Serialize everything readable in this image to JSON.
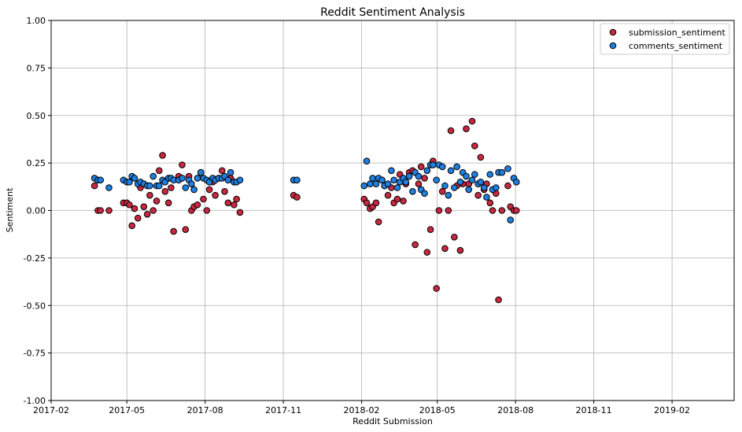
{
  "chart_data": {
    "type": "scatter",
    "title": "Reddit Sentiment Analysis",
    "xlabel": "Reddit Submission",
    "ylabel": "Sentiment",
    "ylim": [
      -1.0,
      1.0
    ],
    "xlim": [
      "2017-02-01",
      "2019-04-15"
    ],
    "yticks": [
      "-1.00",
      "-0.75",
      "-0.50",
      "-0.25",
      "0.00",
      "0.25",
      "0.50",
      "0.75",
      "1.00"
    ],
    "ytick_values": [
      -1.0,
      -0.75,
      -0.5,
      -0.25,
      0.0,
      0.25,
      0.5,
      0.75,
      1.0
    ],
    "xticks": [
      "2017-02",
      "2017-05",
      "2017-08",
      "2017-11",
      "2018-02",
      "2018-05",
      "2018-08",
      "2018-11",
      "2019-02"
    ],
    "xtick_dates": [
      "2017-02-01",
      "2017-05-01",
      "2017-08-01",
      "2017-11-01",
      "2018-02-01",
      "2018-05-01",
      "2018-08-01",
      "2018-11-01",
      "2019-02-01"
    ],
    "grid": true,
    "legend_position": "top-right",
    "series": [
      {
        "name": "submission_sentiment",
        "color": "#c8283f",
        "points": [
          [
            "2017-03-24",
            0.13
          ],
          [
            "2017-03-28",
            0.0
          ],
          [
            "2017-03-31",
            0.0
          ],
          [
            "2017-04-10",
            0.0
          ],
          [
            "2017-04-27",
            0.04
          ],
          [
            "2017-05-01",
            0.04
          ],
          [
            "2017-05-04",
            0.03
          ],
          [
            "2017-05-07",
            -0.08
          ],
          [
            "2017-05-10",
            0.01
          ],
          [
            "2017-05-14",
            -0.04
          ],
          [
            "2017-05-17",
            0.12
          ],
          [
            "2017-05-21",
            0.02
          ],
          [
            "2017-05-25",
            -0.02
          ],
          [
            "2017-05-28",
            0.08
          ],
          [
            "2017-06-01",
            0.0
          ],
          [
            "2017-06-05",
            0.05
          ],
          [
            "2017-06-08",
            0.21
          ],
          [
            "2017-06-12",
            0.29
          ],
          [
            "2017-06-15",
            0.1
          ],
          [
            "2017-06-19",
            0.04
          ],
          [
            "2017-06-22",
            0.12
          ],
          [
            "2017-06-25",
            -0.11
          ],
          [
            "2017-07-01",
            0.18
          ],
          [
            "2017-07-05",
            0.24
          ],
          [
            "2017-07-09",
            -0.1
          ],
          [
            "2017-07-13",
            0.18
          ],
          [
            "2017-07-16",
            0.0
          ],
          [
            "2017-07-19",
            0.02
          ],
          [
            "2017-07-23",
            0.03
          ],
          [
            "2017-07-27",
            0.2
          ],
          [
            "2017-07-30",
            0.06
          ],
          [
            "2017-08-03",
            0.0
          ],
          [
            "2017-08-06",
            0.11
          ],
          [
            "2017-08-10",
            0.15
          ],
          [
            "2017-08-13",
            0.08
          ],
          [
            "2017-08-17",
            0.17
          ],
          [
            "2017-08-21",
            0.21
          ],
          [
            "2017-08-24",
            0.1
          ],
          [
            "2017-08-28",
            0.04
          ],
          [
            "2017-08-31",
            0.17
          ],
          [
            "2017-09-04",
            0.03
          ],
          [
            "2017-09-07",
            0.06
          ],
          [
            "2017-09-11",
            -0.01
          ],
          [
            "2017-11-13",
            0.08
          ],
          [
            "2017-11-17",
            0.07
          ],
          [
            "2018-02-04",
            0.06
          ],
          [
            "2018-02-07",
            0.04
          ],
          [
            "2018-02-11",
            0.01
          ],
          [
            "2018-02-14",
            0.02
          ],
          [
            "2018-02-18",
            0.04
          ],
          [
            "2018-02-21",
            -0.06
          ],
          [
            "2018-02-25",
            0.16
          ],
          [
            "2018-02-28",
            0.13
          ],
          [
            "2018-03-04",
            0.08
          ],
          [
            "2018-03-08",
            0.12
          ],
          [
            "2018-03-11",
            0.04
          ],
          [
            "2018-03-15",
            0.06
          ],
          [
            "2018-03-18",
            0.19
          ],
          [
            "2018-03-22",
            0.05
          ],
          [
            "2018-03-25",
            0.14
          ],
          [
            "2018-03-29",
            0.2
          ],
          [
            "2018-04-02",
            0.21
          ],
          [
            "2018-04-05",
            -0.18
          ],
          [
            "2018-04-09",
            0.14
          ],
          [
            "2018-04-12",
            0.23
          ],
          [
            "2018-04-16",
            0.17
          ],
          [
            "2018-04-19",
            -0.22
          ],
          [
            "2018-04-23",
            -0.1
          ],
          [
            "2018-04-26",
            0.26
          ],
          [
            "2018-04-30",
            -0.41
          ],
          [
            "2018-05-03",
            0.0
          ],
          [
            "2018-05-07",
            0.1
          ],
          [
            "2018-05-10",
            -0.2
          ],
          [
            "2018-05-14",
            0.0
          ],
          [
            "2018-05-17",
            0.42
          ],
          [
            "2018-05-21",
            -0.14
          ],
          [
            "2018-05-24",
            0.13
          ],
          [
            "2018-05-28",
            -0.21
          ],
          [
            "2018-05-31",
            0.14
          ],
          [
            "2018-06-04",
            0.43
          ],
          [
            "2018-06-07",
            0.14
          ],
          [
            "2018-06-11",
            0.47
          ],
          [
            "2018-06-14",
            0.34
          ],
          [
            "2018-06-18",
            0.08
          ],
          [
            "2018-06-21",
            0.28
          ],
          [
            "2018-06-25",
            0.11
          ],
          [
            "2018-06-28",
            0.14
          ],
          [
            "2018-07-02",
            0.04
          ],
          [
            "2018-07-05",
            0.0
          ],
          [
            "2018-07-09",
            0.09
          ],
          [
            "2018-07-12",
            -0.47
          ],
          [
            "2018-07-16",
            0.0
          ],
          [
            "2018-07-23",
            0.13
          ],
          [
            "2018-07-26",
            0.02
          ],
          [
            "2018-07-30",
            0.0
          ],
          [
            "2018-08-02",
            0.0
          ]
        ]
      },
      {
        "name": "comments_sentiment",
        "color": "#1f7fe0",
        "points": [
          [
            "2017-03-24",
            0.17
          ],
          [
            "2017-03-28",
            0.16
          ],
          [
            "2017-03-31",
            0.16
          ],
          [
            "2017-04-10",
            0.12
          ],
          [
            "2017-04-27",
            0.16
          ],
          [
            "2017-05-01",
            0.15
          ],
          [
            "2017-05-04",
            0.15
          ],
          [
            "2017-05-07",
            0.18
          ],
          [
            "2017-05-10",
            0.17
          ],
          [
            "2017-05-14",
            0.14
          ],
          [
            "2017-05-17",
            0.15
          ],
          [
            "2017-05-21",
            0.14
          ],
          [
            "2017-05-25",
            0.13
          ],
          [
            "2017-05-28",
            0.13
          ],
          [
            "2017-06-01",
            0.18
          ],
          [
            "2017-06-05",
            0.13
          ],
          [
            "2017-06-08",
            0.13
          ],
          [
            "2017-06-12",
            0.16
          ],
          [
            "2017-06-15",
            0.15
          ],
          [
            "2017-06-19",
            0.17
          ],
          [
            "2017-06-22",
            0.17
          ],
          [
            "2017-06-25",
            0.16
          ],
          [
            "2017-07-01",
            0.16
          ],
          [
            "2017-07-05",
            0.17
          ],
          [
            "2017-07-09",
            0.12
          ],
          [
            "2017-07-13",
            0.16
          ],
          [
            "2017-07-16",
            0.14
          ],
          [
            "2017-07-19",
            0.11
          ],
          [
            "2017-07-23",
            0.17
          ],
          [
            "2017-07-27",
            0.2
          ],
          [
            "2017-07-30",
            0.17
          ],
          [
            "2017-08-03",
            0.16
          ],
          [
            "2017-08-06",
            0.15
          ],
          [
            "2017-08-10",
            0.17
          ],
          [
            "2017-08-13",
            0.16
          ],
          [
            "2017-08-17",
            0.17
          ],
          [
            "2017-08-21",
            0.17
          ],
          [
            "2017-08-24",
            0.18
          ],
          [
            "2017-08-28",
            0.16
          ],
          [
            "2017-08-31",
            0.2
          ],
          [
            "2017-09-04",
            0.15
          ],
          [
            "2017-09-07",
            0.15
          ],
          [
            "2017-09-11",
            0.16
          ],
          [
            "2017-11-13",
            0.16
          ],
          [
            "2017-11-17",
            0.16
          ],
          [
            "2018-02-04",
            0.13
          ],
          [
            "2018-02-07",
            0.26
          ],
          [
            "2018-02-11",
            0.14
          ],
          [
            "2018-02-14",
            0.17
          ],
          [
            "2018-02-18",
            0.14
          ],
          [
            "2018-02-21",
            0.17
          ],
          [
            "2018-02-25",
            0.16
          ],
          [
            "2018-02-28",
            0.13
          ],
          [
            "2018-03-04",
            0.14
          ],
          [
            "2018-03-08",
            0.21
          ],
          [
            "2018-03-11",
            0.16
          ],
          [
            "2018-03-15",
            0.12
          ],
          [
            "2018-03-18",
            0.15
          ],
          [
            "2018-03-22",
            0.17
          ],
          [
            "2018-03-25",
            0.15
          ],
          [
            "2018-03-29",
            0.18
          ],
          [
            "2018-04-02",
            0.1
          ],
          [
            "2018-04-05",
            0.2
          ],
          [
            "2018-04-09",
            0.18
          ],
          [
            "2018-04-12",
            0.11
          ],
          [
            "2018-04-16",
            0.09
          ],
          [
            "2018-04-19",
            0.21
          ],
          [
            "2018-04-23",
            0.24
          ],
          [
            "2018-04-26",
            0.24
          ],
          [
            "2018-04-30",
            0.16
          ],
          [
            "2018-05-03",
            0.24
          ],
          [
            "2018-05-07",
            0.23
          ],
          [
            "2018-05-10",
            0.13
          ],
          [
            "2018-05-14",
            0.08
          ],
          [
            "2018-05-17",
            0.21
          ],
          [
            "2018-05-21",
            0.12
          ],
          [
            "2018-05-24",
            0.23
          ],
          [
            "2018-05-28",
            0.15
          ],
          [
            "2018-05-31",
            0.2
          ],
          [
            "2018-06-04",
            0.18
          ],
          [
            "2018-06-07",
            0.11
          ],
          [
            "2018-06-11",
            0.16
          ],
          [
            "2018-06-14",
            0.19
          ],
          [
            "2018-06-18",
            0.14
          ],
          [
            "2018-06-21",
            0.15
          ],
          [
            "2018-06-25",
            0.12
          ],
          [
            "2018-06-28",
            0.07
          ],
          [
            "2018-07-02",
            0.19
          ],
          [
            "2018-07-05",
            0.11
          ],
          [
            "2018-07-09",
            0.12
          ],
          [
            "2018-07-12",
            0.2
          ],
          [
            "2018-07-16",
            0.2
          ],
          [
            "2018-07-23",
            0.22
          ],
          [
            "2018-07-26",
            -0.05
          ],
          [
            "2018-07-30",
            0.17
          ],
          [
            "2018-08-02",
            0.15
          ]
        ]
      }
    ]
  }
}
